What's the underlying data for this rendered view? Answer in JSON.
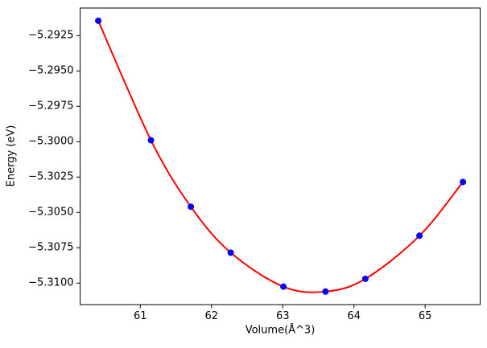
{
  "chart_data": {
    "type": "scatter",
    "title": "",
    "xlabel": "Volume(Å^3)",
    "ylabel": "Energy (eV)",
    "x": [
      60.41,
      61.15,
      61.71,
      62.27,
      63.01,
      63.6,
      64.16,
      64.92,
      65.53
    ],
    "y": [
      -5.29145,
      -5.2999,
      -5.3046,
      -5.30785,
      -5.31025,
      -5.3106,
      -5.3097,
      -5.30665,
      -5.30285
    ],
    "series": [
      {
        "name": "fit-curve",
        "type": "line",
        "color": "#ff0000"
      },
      {
        "name": "data-points",
        "type": "scatter",
        "color": "#0000ff"
      }
    ],
    "xlim": [
      60.155,
      65.772
    ],
    "ylim": [
      -5.31152,
      -5.29055
    ],
    "xticks": [
      61,
      62,
      63,
      64,
      65
    ],
    "yticks": [
      -5.2925,
      -5.295,
      -5.2975,
      -5.3,
      -5.3025,
      -5.305,
      -5.3075,
      -5.31
    ],
    "ytick_decimals": 4,
    "grid": false,
    "legend": null,
    "marker_color": "#0000ff",
    "line_color": "#ff0000",
    "axis_color": "#000000",
    "background_color": "#ffffff"
  }
}
